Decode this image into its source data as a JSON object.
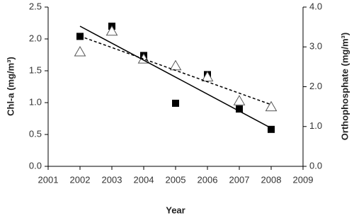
{
  "chart_data": {
    "type": "scatter",
    "x_label": "Year",
    "y_label": "Chl-a (mg/m³)",
    "y2_label": "Orthophosphate (mg/m³)",
    "xlim": [
      2001,
      2009
    ],
    "xticks": [
      2001,
      2002,
      2003,
      2004,
      2005,
      2006,
      2007,
      2008,
      2009
    ],
    "ylim": [
      0,
      2.5
    ],
    "yticks": [
      {
        "value": 0,
        "label": "0.0"
      },
      {
        "value": 0.5,
        "label": "0.5"
      },
      {
        "value": 1,
        "label": "1.0"
      },
      {
        "value": 1.5,
        "label": "1.5"
      },
      {
        "value": 2,
        "label": "2.0"
      },
      {
        "value": 2.5,
        "label": "2.5"
      }
    ],
    "y2lim": [
      0,
      4
    ],
    "y2ticks": [
      {
        "value": 0,
        "label": "0.0"
      },
      {
        "value": 1,
        "label": "1.0"
      },
      {
        "value": 2,
        "label": "2.0"
      },
      {
        "value": 3,
        "label": "3.0"
      },
      {
        "value": 4,
        "label": "4.0"
      }
    ],
    "series": [
      {
        "marker": "square",
        "color": "#000000",
        "x": [
          2002,
          2003,
          2004,
          2005,
          2006,
          2007,
          2008
        ],
        "values": [
          2.04,
          2.2,
          1.74,
          0.99,
          1.44,
          0.9,
          0.58
        ]
      },
      {
        "marker": "triangle",
        "color": "#ffffff",
        "axis": "y2",
        "x": [
          2002,
          2003,
          2004,
          2005,
          2006,
          2007,
          2008
        ],
        "values": [
          2.88,
          3.4,
          2.7,
          2.53,
          2.25,
          1.65,
          1.5
        ]
      },
      {
        "marker": "line",
        "line_style": "solid",
        "color": "#000000",
        "x": [
          2002,
          2008
        ],
        "values": [
          2.2,
          0.6
        ]
      },
      {
        "marker": "line",
        "line_style": "dashed",
        "color": "#000000",
        "axis": "y2",
        "x": [
          2002,
          2008
        ],
        "values": [
          3.27,
          1.55
        ]
      }
    ]
  }
}
